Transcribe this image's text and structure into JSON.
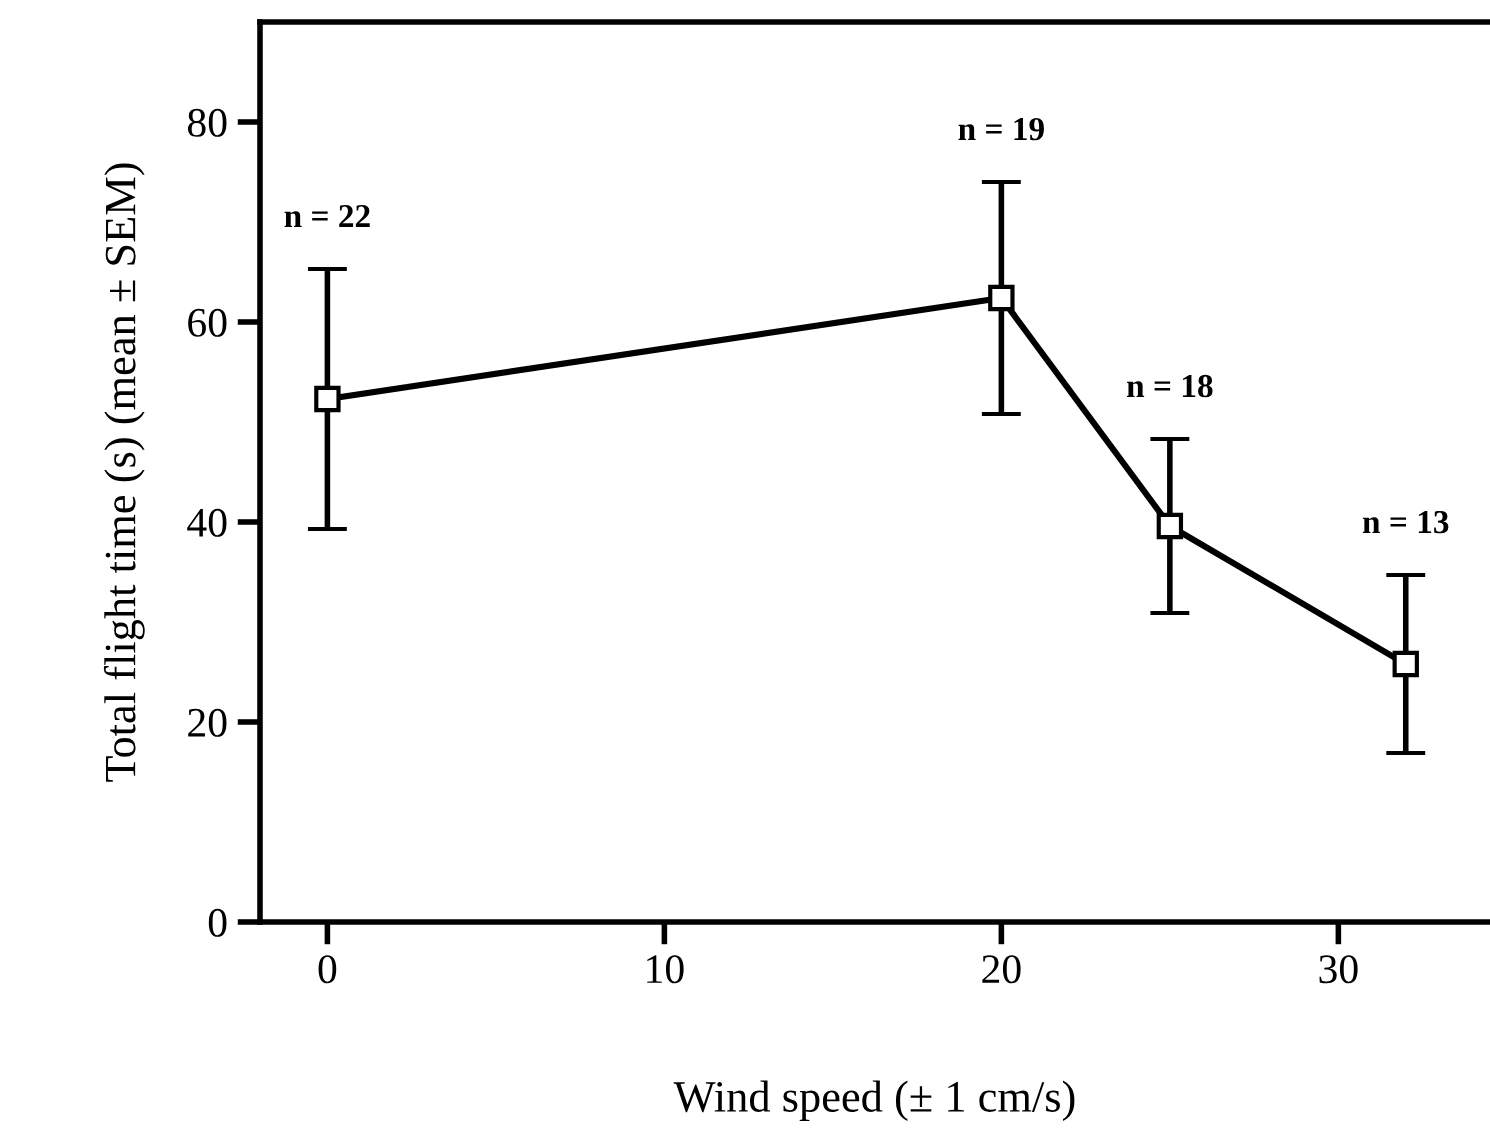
{
  "chart_data": {
    "type": "line",
    "xlabel": "Wind speed (± 1 cm/s)",
    "ylabel": "Total flight time (s) (mean ± SEM)",
    "x": [
      0,
      20,
      25,
      32
    ],
    "series": [
      {
        "color": "#000000",
        "values": [
          52.3,
          62.4,
          39.6,
          25.8
        ],
        "errors": [
          13,
          11.6,
          8.7,
          8.9
        ]
      }
    ],
    "marker": "square",
    "line_style": "solid",
    "grid": false,
    "legend": false,
    "xlim": [
      -2,
      34.5
    ],
    "xticks": [
      0,
      10,
      20,
      30
    ],
    "ylim": [
      0,
      90
    ],
    "yticks": [
      0,
      20,
      40,
      60,
      80
    ],
    "annotations": [
      "n = 22",
      "n = 19",
      "n = 18",
      "n = 13"
    ]
  }
}
